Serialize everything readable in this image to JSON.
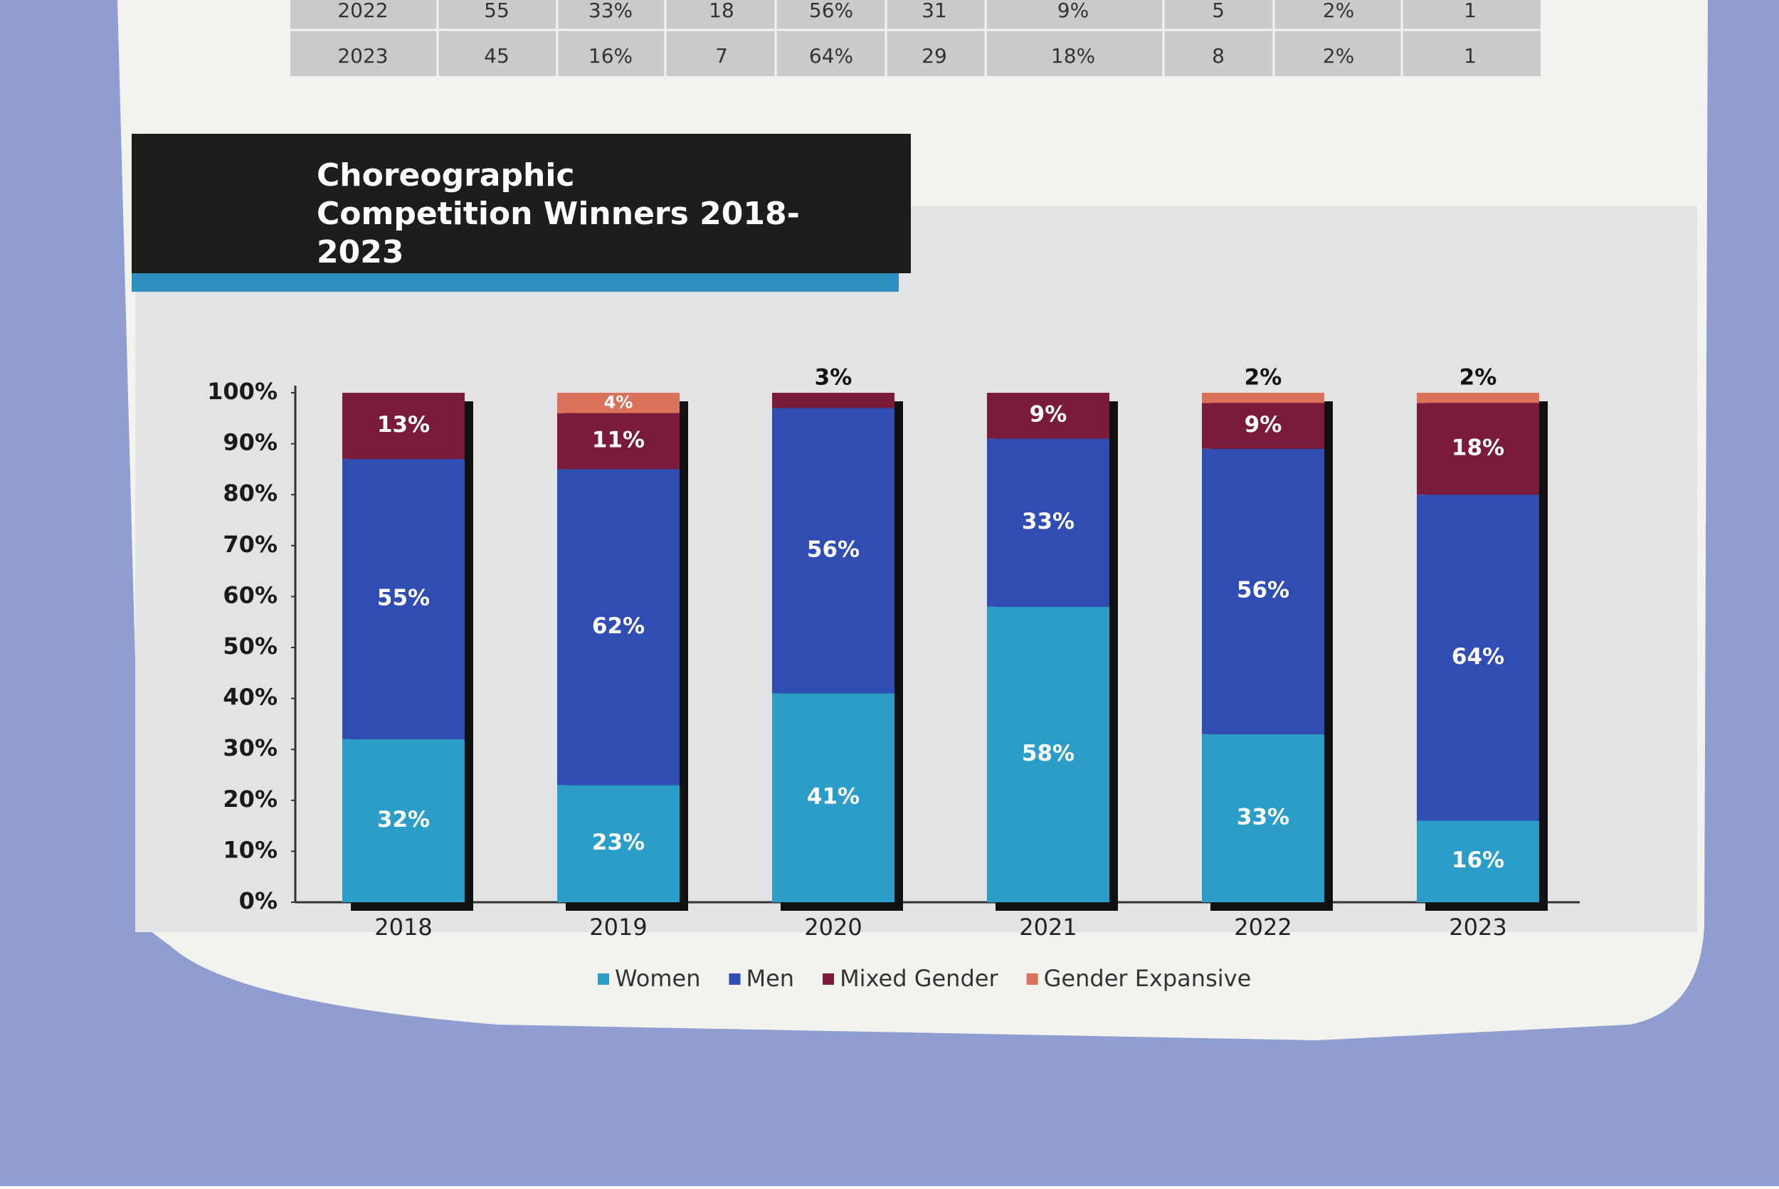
{
  "table": {
    "rows": [
      [
        "2022",
        "55",
        "33%",
        "18",
        "56%",
        "31",
        "9%",
        "5",
        "2%",
        "1"
      ],
      [
        "2023",
        "45",
        "16%",
        "7",
        "64%",
        "29",
        "18%",
        "8",
        "2%",
        "1"
      ]
    ]
  },
  "chart_data": {
    "type": "stacked_bar",
    "title": "Choreographic Competition Winners 2018-2023",
    "categories": [
      "2018",
      "2019",
      "2020",
      "2021",
      "2022",
      "2023"
    ],
    "series": [
      {
        "name": "Women",
        "color": "#2a9dc9",
        "values": [
          32,
          23,
          41,
          58,
          33,
          16
        ],
        "value_labels": [
          "32%",
          "23%",
          "41%",
          "58%",
          "33%",
          "16%"
        ]
      },
      {
        "name": "Men",
        "color": "#2f4db3",
        "values": [
          55,
          62,
          56,
          33,
          56,
          64
        ],
        "value_labels": [
          "55%",
          "62%",
          "56%",
          "33%",
          "56%",
          "64%"
        ]
      },
      {
        "name": "Mixed Gender",
        "color": "#7b1b3c",
        "values": [
          13,
          11,
          3,
          9,
          9,
          18
        ],
        "value_labels": [
          "13%",
          "11%",
          "3%",
          "9%",
          "9%",
          "18%"
        ]
      },
      {
        "name": "Gender Expansive",
        "color": "#d9715b",
        "values": [
          null,
          4,
          null,
          null,
          2,
          2
        ],
        "value_labels": [
          null,
          "4%",
          null,
          null,
          "2%",
          "2%"
        ]
      }
    ],
    "ylim": [
      0,
      100
    ],
    "yticks": [
      {
        "value": 0,
        "label": "0%"
      },
      {
        "value": 10,
        "label": "10%"
      },
      {
        "value": 20,
        "label": "20%"
      },
      {
        "value": 30,
        "label": "30%"
      },
      {
        "value": 40,
        "label": "40%"
      },
      {
        "value": 50,
        "label": "50%"
      },
      {
        "value": 60,
        "label": "60%"
      },
      {
        "value": 70,
        "label": "70%"
      },
      {
        "value": 80,
        "label": "80%"
      },
      {
        "value": 90,
        "label": "90%"
      },
      {
        "value": 100,
        "label": "100%"
      }
    ],
    "legend": "bottom"
  }
}
